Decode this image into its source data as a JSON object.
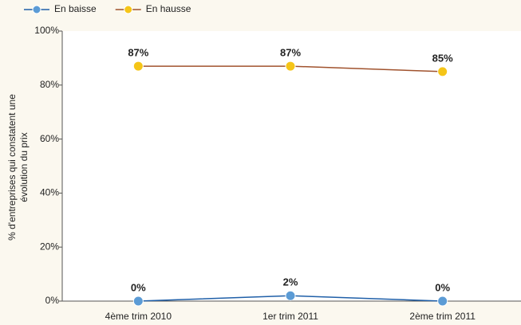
{
  "chart_data": {
    "type": "line",
    "categories": [
      "4ème trim 2010",
      "1er trim 2011",
      "2ème trim 2011"
    ],
    "series": [
      {
        "name": "En baisse",
        "color": "#5b9bd5",
        "line_color": "#1f5fa8",
        "values": [
          0,
          2,
          0
        ],
        "value_labels": [
          "0%",
          "2%",
          "0%"
        ]
      },
      {
        "name": "En hausse",
        "color": "#f5c518",
        "line_color": "#a0522d",
        "values": [
          87,
          87,
          85
        ],
        "value_labels": [
          "87%",
          "87%",
          "85%"
        ]
      }
    ],
    "ylabel": [
      "% d'entreprises qui constatent une",
      "évolution du prix"
    ],
    "ylim": [
      0,
      100
    ],
    "yticks": [
      {
        "value": 0,
        "label": "0%"
      },
      {
        "value": 20,
        "label": "20%"
      },
      {
        "value": 40,
        "label": "40%"
      },
      {
        "value": 60,
        "label": "60%"
      },
      {
        "value": 80,
        "label": "80%"
      },
      {
        "value": 100,
        "label": "100%"
      }
    ],
    "legend": "top-left"
  }
}
